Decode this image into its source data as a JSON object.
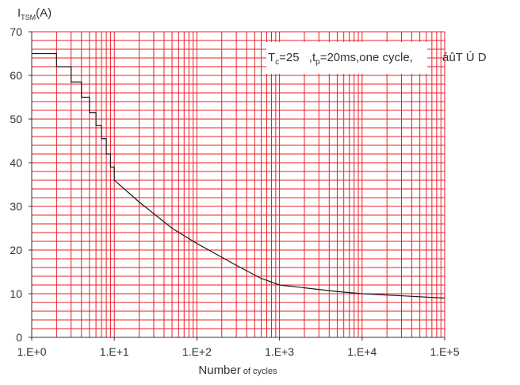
{
  "chart_data": {
    "type": "line",
    "x_scale": "log",
    "xlim": [
      1,
      100000
    ],
    "ylim": [
      0,
      70
    ],
    "grid": true,
    "xlabel": {
      "main": "Number",
      "small": " of cycles"
    },
    "ylabel": {
      "main": "I",
      "sub": "TSM",
      "suffix": "(A)"
    },
    "x_tick_labels": [
      "1.E+0",
      "1.E+1",
      "1.E+2",
      "1.E+3",
      "1.E+4",
      "1.E+5"
    ],
    "y_tick_labels": [
      "0",
      "10",
      "20",
      "30",
      "40",
      "50",
      "60",
      "70"
    ],
    "annotation": {
      "t1": "T",
      "t1_sub": "c",
      "t1_rest": "=25",
      "t2": " ,t",
      "t2_sub": "p",
      "t2_rest": "=20ms,one cycle,",
      "garble": "áûT Ú D"
    },
    "series": [
      {
        "x": [
          1,
          2,
          2,
          3,
          3,
          4,
          4,
          5,
          5,
          6,
          6,
          7,
          7,
          8,
          8,
          9,
          9,
          10,
          10,
          20,
          50,
          100,
          300,
          600,
          1000,
          5000,
          10000,
          100000
        ],
        "y": [
          65,
          65,
          62,
          62,
          58.5,
          58.5,
          55,
          55,
          51.5,
          51.5,
          48.5,
          48.5,
          45.5,
          45.5,
          42,
          42,
          39,
          39,
          36,
          31,
          25,
          21.5,
          16.5,
          13.5,
          12,
          10.5,
          10,
          9
        ]
      }
    ],
    "colors": {
      "grid": "#e8202a",
      "line": "#1a1a1a",
      "axis": "#333333",
      "annotation_bg": "#ffffff"
    }
  }
}
